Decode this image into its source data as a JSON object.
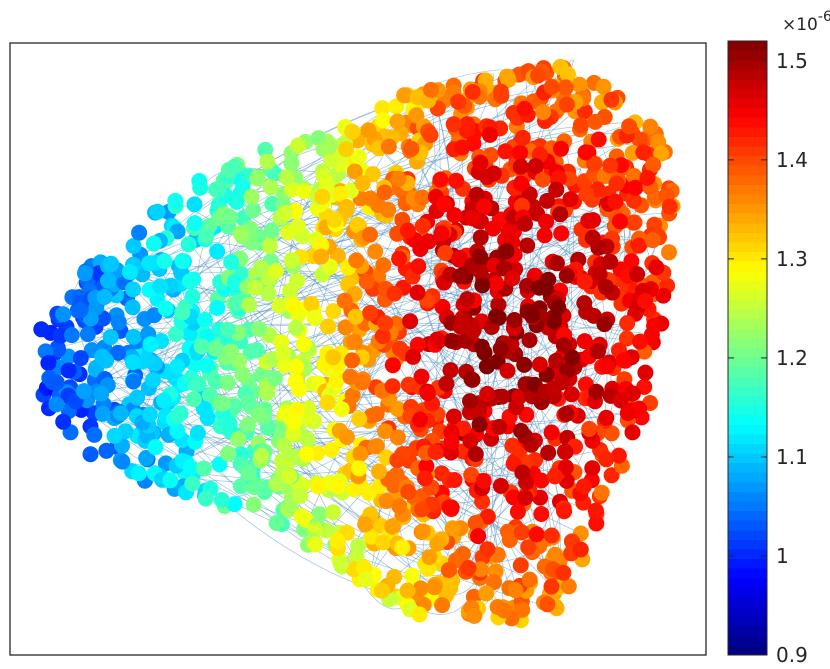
{
  "chart_data": {
    "type": "scatter",
    "title": "",
    "xlabel": "",
    "ylabel": "",
    "axes_visible": false,
    "description_kind": "network graph with nodes colored by value",
    "colormap": "jet",
    "colorbar": {
      "placement": "right",
      "range": [
        0.9,
        1.52
      ],
      "ticks": [
        {
          "value": 0.9,
          "label": "0.9"
        },
        {
          "value": 1.0,
          "label": "1"
        },
        {
          "value": 1.1,
          "label": "1.1"
        },
        {
          "value": 1.2,
          "label": "1.2"
        },
        {
          "value": 1.3,
          "label": "1.3"
        },
        {
          "value": 1.4,
          "label": "1.4"
        },
        {
          "value": 1.5,
          "label": "1.5"
        }
      ],
      "exponent_prefix": "×10",
      "exponent": "-6"
    },
    "value_trend": {
      "min_region": "left",
      "max_region": "right-center",
      "low_value": 0.92,
      "high_value": 1.5
    },
    "edge_color": "#4f8fc0"
  }
}
